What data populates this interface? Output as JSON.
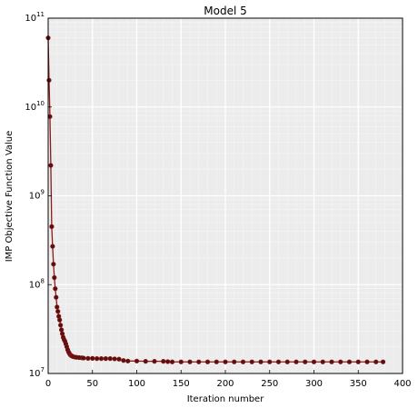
{
  "chart_data": {
    "type": "line",
    "title": "Model 5",
    "xlabel": "Iteration number",
    "ylabel": "IMP Objective Function Value",
    "xlim": [
      0,
      400
    ],
    "ylim": [
      10000000,
      100000000000
    ],
    "yscale": "log",
    "grid": true,
    "x_ticks": [
      0,
      50,
      100,
      150,
      200,
      250,
      300,
      350,
      400
    ],
    "x_tick_labels": [
      "0",
      "50",
      "100",
      "150",
      "200",
      "250",
      "300",
      "350",
      "400"
    ],
    "y_ticks": [
      10000000,
      100000000,
      1000000000,
      10000000000,
      100000000000
    ],
    "y_tick_labels": [
      {
        "base": "10",
        "exp": "7"
      },
      {
        "base": "10",
        "exp": "8"
      },
      {
        "base": "10",
        "exp": "9"
      },
      {
        "base": "10",
        "exp": "10"
      },
      {
        "base": "10",
        "exp": "11"
      }
    ],
    "series": [
      {
        "color": "#8b1a1a",
        "marker_color": "#5a1010",
        "x": [
          0,
          1,
          2,
          3,
          4,
          5,
          6,
          7,
          8,
          9,
          10,
          11,
          12,
          13,
          14,
          15,
          16,
          17,
          18,
          19,
          20,
          21,
          22,
          23,
          24,
          25,
          26,
          27,
          28,
          30,
          32,
          35,
          38,
          40,
          45,
          50,
          55,
          60,
          65,
          70,
          75,
          80,
          85,
          90,
          100,
          110,
          120,
          130,
          135,
          140,
          150,
          160,
          170,
          180,
          190,
          200,
          210,
          220,
          230,
          240,
          250,
          260,
          270,
          280,
          290,
          300,
          310,
          320,
          330,
          340,
          350,
          360,
          370,
          378
        ],
        "y": [
          60000000000,
          20000000000,
          7800000000,
          2200000000,
          450000000,
          270000000,
          170000000,
          120000000,
          90000000,
          72000000,
          56000000,
          50000000,
          44000000,
          40000000,
          35000000,
          31000000,
          28000000,
          25500000,
          24000000,
          23000000,
          21500000,
          20000000,
          18500000,
          17500000,
          16800000,
          16200000,
          15900000,
          15700000,
          15500000,
          15300000,
          15200000,
          15100000,
          15000000,
          14900000,
          14800000,
          14800000,
          14700000,
          14700000,
          14700000,
          14700000,
          14600000,
          14500000,
          14000000,
          13800000,
          13800000,
          13700000,
          13700000,
          13700000,
          13600000,
          13500000,
          13500000,
          13500000,
          13500000,
          13500000,
          13500000,
          13500000,
          13500000,
          13500000,
          13500000,
          13500000,
          13500000,
          13500000,
          13500000,
          13500000,
          13500000,
          13500000,
          13500000,
          13500000,
          13500000,
          13500000,
          13500000,
          13500000,
          13500000,
          13500000
        ]
      }
    ]
  }
}
